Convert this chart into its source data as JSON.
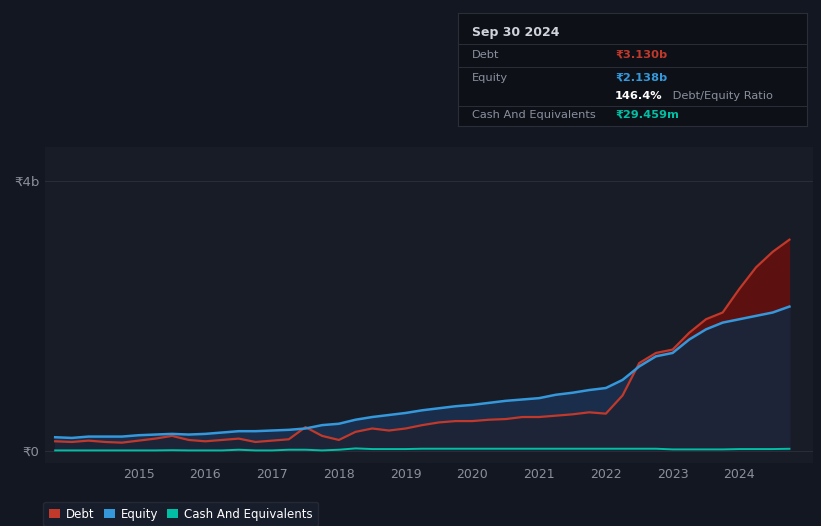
{
  "background_color": "#131722",
  "plot_bg_color": "#181c27",
  "grid_color": "#2a2e39",
  "title_box": {
    "date": "Sep 30 2024",
    "debt_label": "Debt",
    "debt_value": "₹3.130b",
    "equity_label": "Equity",
    "equity_value": "₹2.138b",
    "ratio_bold": "146.4%",
    "ratio_rest": " Debt/Equity Ratio",
    "cash_label": "Cash And Equivalents",
    "cash_value": "₹29.459m",
    "debt_color": "#c0392b",
    "equity_color": "#3498db",
    "cash_color": "#00bfa5",
    "text_color": "#8a8f9e",
    "title_color": "#d0d3dc",
    "box_bg": "#0d1117",
    "box_border": "#2a2e39"
  },
  "xlim": [
    2013.6,
    2025.1
  ],
  "ylim": [
    -0.18,
    4.5
  ],
  "ytick_vals": [
    0,
    4
  ],
  "ytick_labels": [
    "₹0",
    "₹4b"
  ],
  "xticks": [
    2015,
    2016,
    2017,
    2018,
    2019,
    2020,
    2021,
    2022,
    2023,
    2024
  ],
  "debt_color": "#c0392b",
  "equity_color": "#3498db",
  "cash_color": "#00bfa5",
  "debt_fill_color": "#5c1010",
  "equity_fill_color": "#1a2d4a",
  "base_fill_color": "#1e2438",
  "legend_bg": "#1a1f2e",
  "legend_border": "#2a2e39",
  "years": [
    2013.75,
    2014.0,
    2014.25,
    2014.5,
    2014.75,
    2015.0,
    2015.25,
    2015.5,
    2015.75,
    2016.0,
    2016.25,
    2016.5,
    2016.75,
    2017.0,
    2017.25,
    2017.5,
    2017.75,
    2018.0,
    2018.25,
    2018.5,
    2018.75,
    2019.0,
    2019.25,
    2019.5,
    2019.75,
    2020.0,
    2020.25,
    2020.5,
    2020.75,
    2021.0,
    2021.25,
    2021.5,
    2021.75,
    2022.0,
    2022.25,
    2022.5,
    2022.75,
    2023.0,
    2023.25,
    2023.5,
    2023.75,
    2024.0,
    2024.25,
    2024.5,
    2024.75
  ],
  "debt": [
    0.14,
    0.13,
    0.15,
    0.13,
    0.12,
    0.15,
    0.18,
    0.22,
    0.16,
    0.14,
    0.16,
    0.18,
    0.13,
    0.15,
    0.17,
    0.35,
    0.22,
    0.16,
    0.28,
    0.33,
    0.3,
    0.33,
    0.38,
    0.42,
    0.44,
    0.44,
    0.46,
    0.47,
    0.5,
    0.5,
    0.52,
    0.54,
    0.57,
    0.55,
    0.82,
    1.3,
    1.45,
    1.5,
    1.75,
    1.95,
    2.05,
    2.4,
    2.72,
    2.95,
    3.13
  ],
  "equity": [
    0.2,
    0.19,
    0.21,
    0.21,
    0.21,
    0.23,
    0.24,
    0.25,
    0.24,
    0.25,
    0.27,
    0.29,
    0.29,
    0.3,
    0.31,
    0.33,
    0.38,
    0.4,
    0.46,
    0.5,
    0.53,
    0.56,
    0.6,
    0.63,
    0.66,
    0.68,
    0.71,
    0.74,
    0.76,
    0.78,
    0.83,
    0.86,
    0.9,
    0.93,
    1.05,
    1.25,
    1.4,
    1.45,
    1.65,
    1.8,
    1.9,
    1.95,
    2.0,
    2.05,
    2.138
  ],
  "cash": [
    0.005,
    0.005,
    0.005,
    0.005,
    0.005,
    0.005,
    0.005,
    0.008,
    0.005,
    0.005,
    0.005,
    0.015,
    0.005,
    0.005,
    0.015,
    0.015,
    0.005,
    0.015,
    0.035,
    0.025,
    0.025,
    0.025,
    0.03,
    0.03,
    0.03,
    0.03,
    0.03,
    0.03,
    0.03,
    0.03,
    0.03,
    0.03,
    0.03,
    0.03,
    0.03,
    0.03,
    0.03,
    0.02,
    0.02,
    0.02,
    0.02,
    0.025,
    0.025,
    0.025,
    0.029
  ]
}
